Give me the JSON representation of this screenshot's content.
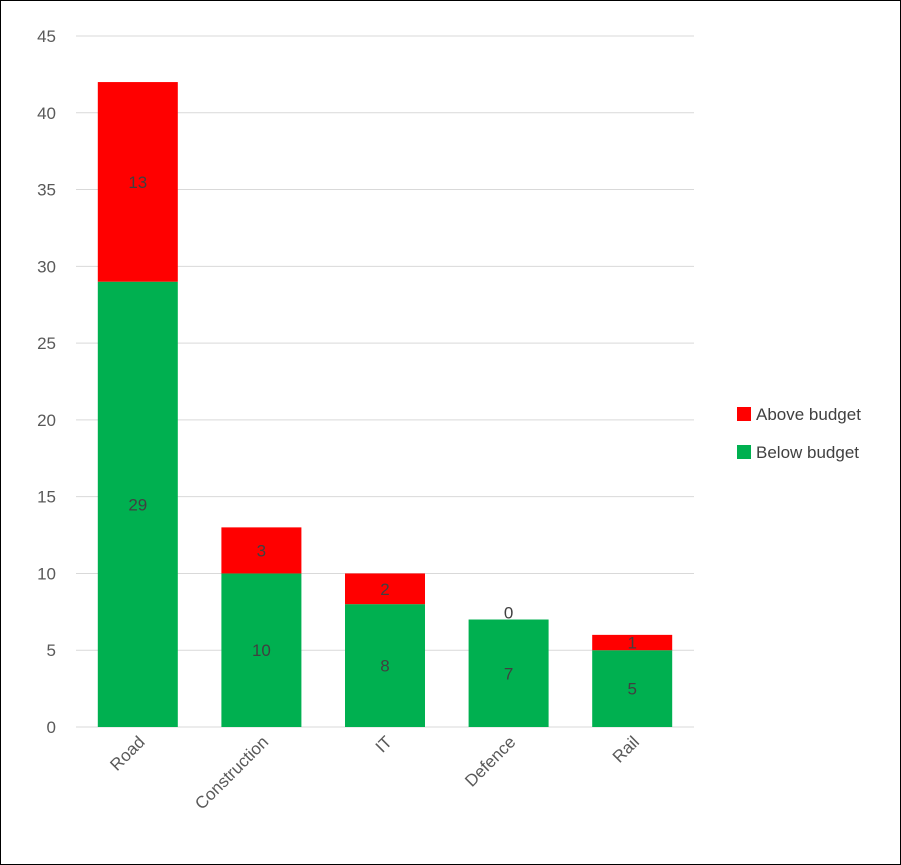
{
  "chart_data": {
    "type": "bar",
    "stacked": true,
    "categories": [
      "Road",
      "Construction",
      "IT",
      "Defence",
      "Rail"
    ],
    "series": [
      {
        "name": "Below budget",
        "values": [
          29,
          10,
          8,
          7,
          5
        ],
        "color": "#00b050"
      },
      {
        "name": "Above budget",
        "values": [
          13,
          3,
          2,
          0,
          1
        ],
        "color": "#ff0000"
      }
    ],
    "ylim": [
      0,
      45
    ],
    "yticks": [
      0,
      5,
      10,
      15,
      20,
      25,
      30,
      35,
      40,
      45
    ],
    "grid": true,
    "legend_position": "right",
    "legend_order": [
      "Above budget",
      "Below budget"
    ],
    "data_labels": true
  }
}
